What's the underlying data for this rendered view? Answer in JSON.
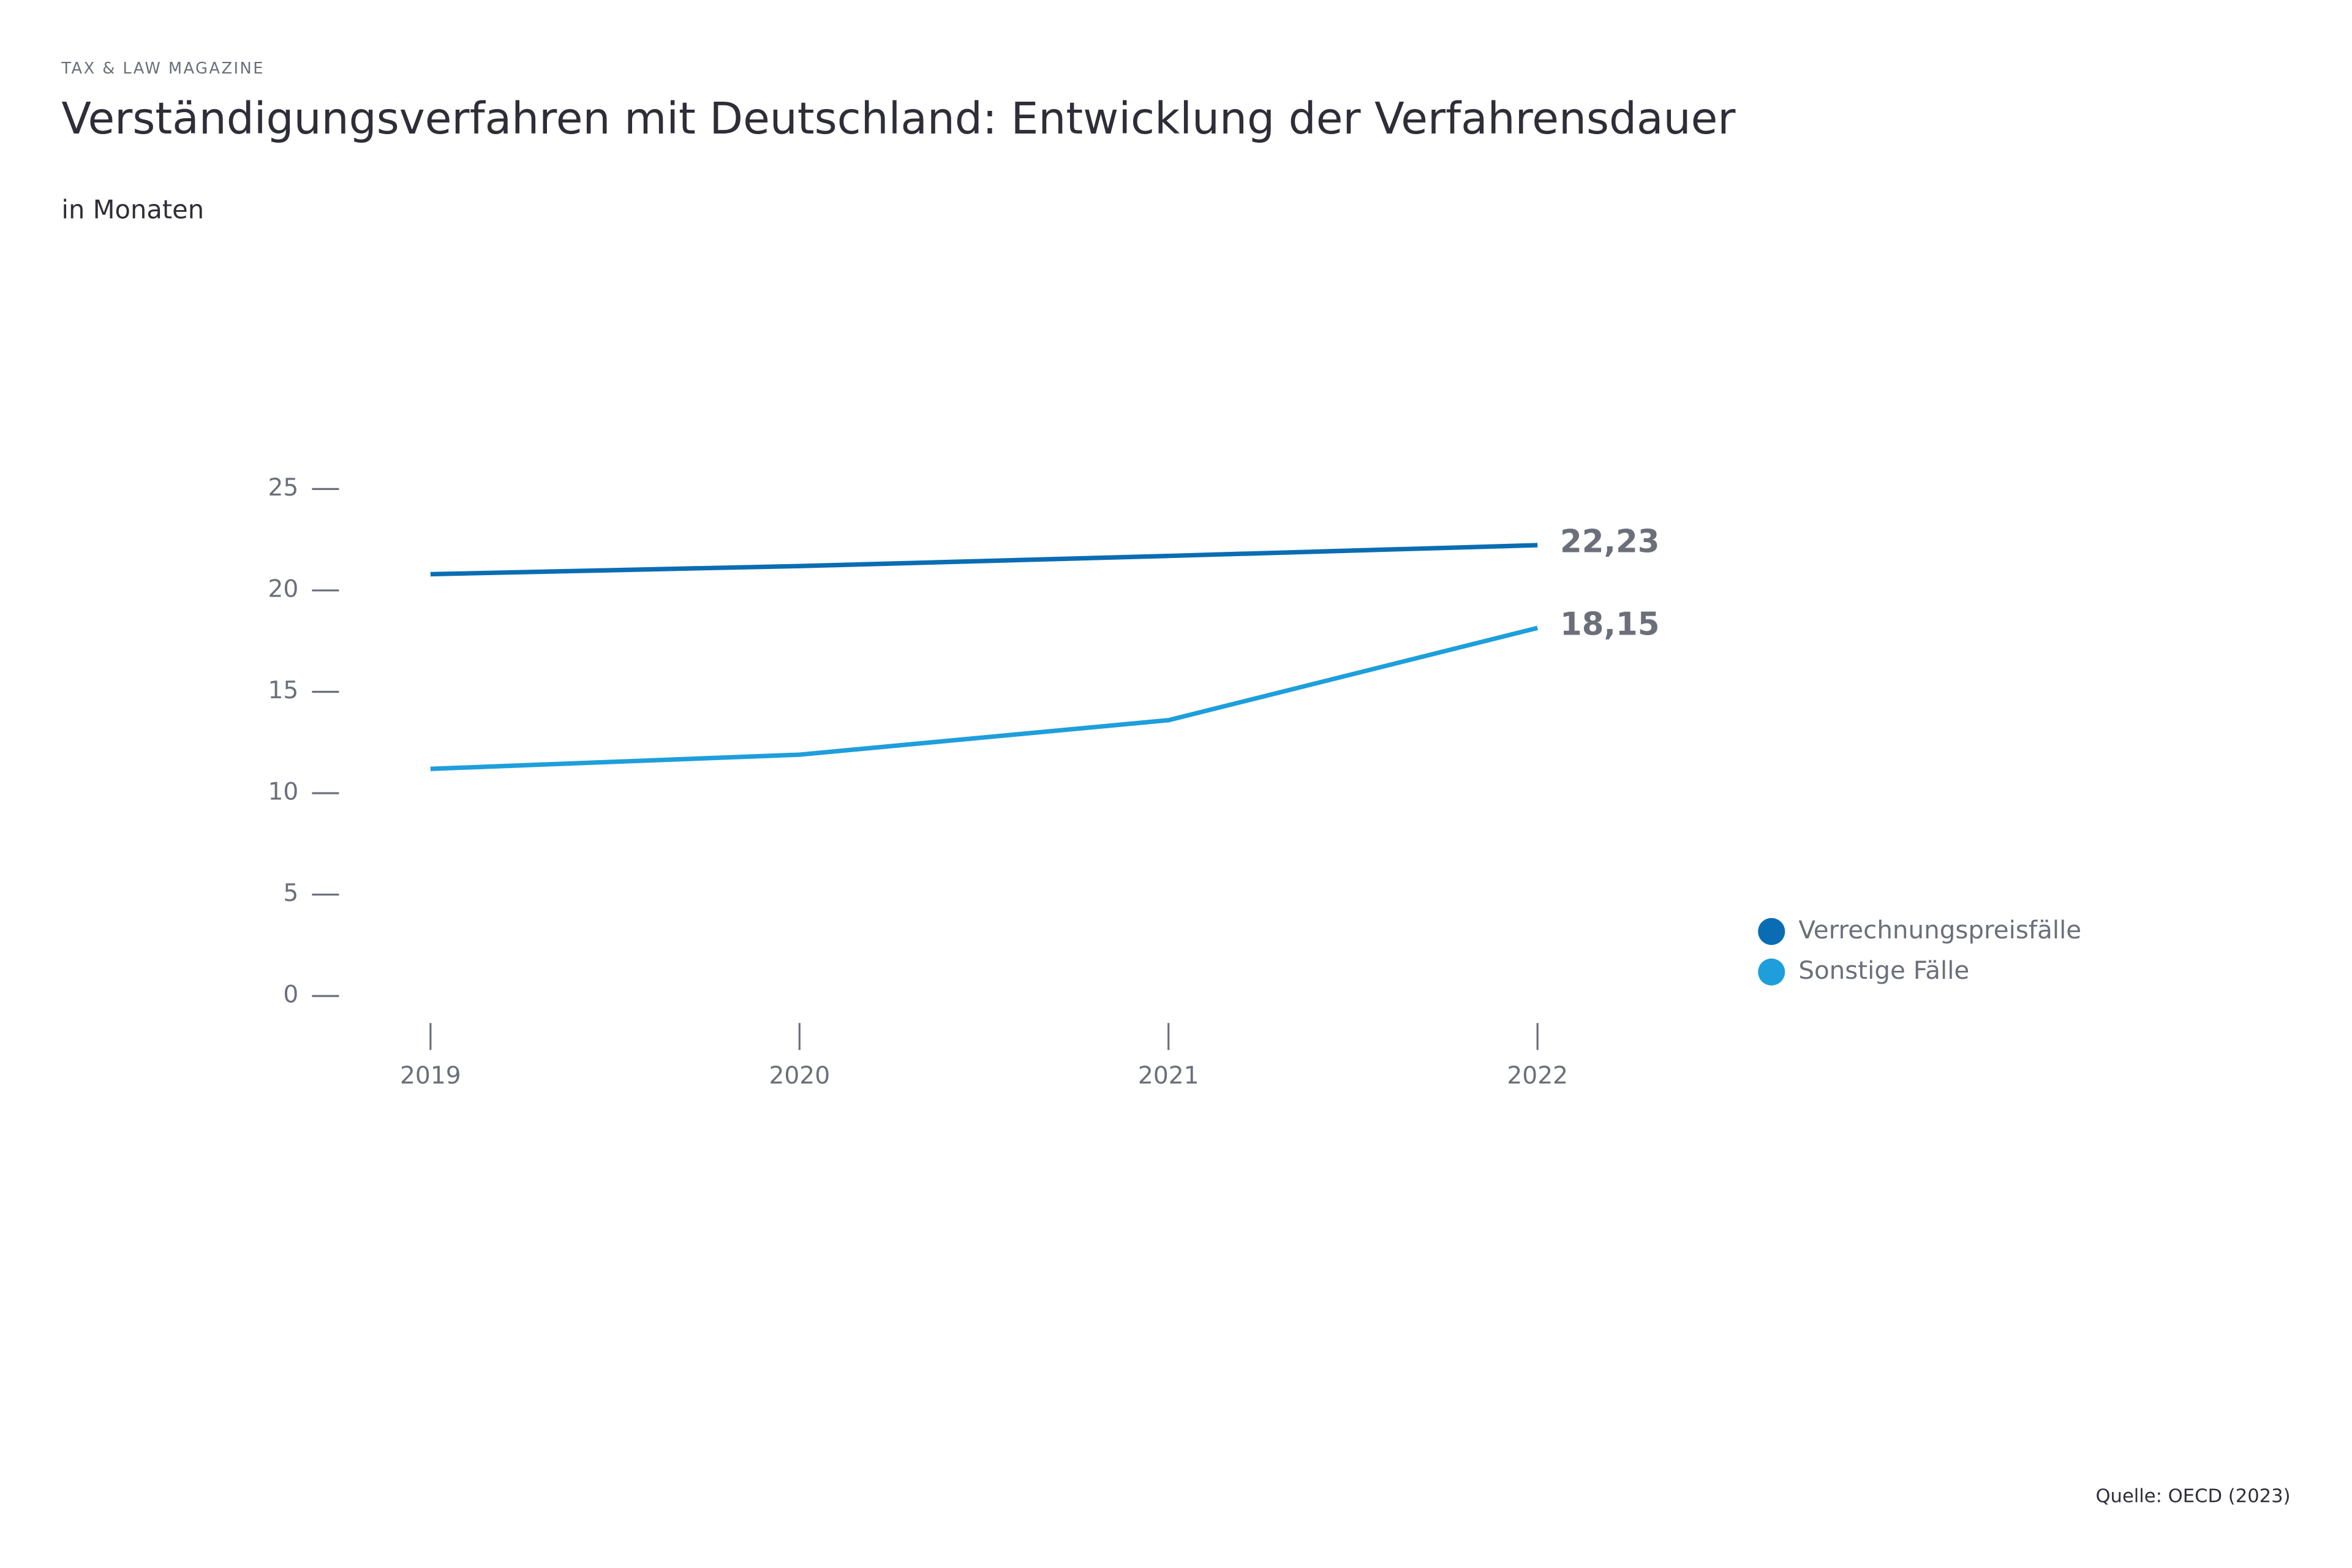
{
  "chart_data": {
    "type": "line",
    "header": "TAX & LAW MAGAZINE",
    "title": "Verständigungsverfahren mit Deutschland: Entwicklung der Verfahrensdauer",
    "subtitle": "in Monaten",
    "source": "Quelle: OECD (2023)",
    "categories": [
      "2019",
      "2020",
      "2021",
      "2022"
    ],
    "series": [
      {
        "name": "Verrechnungspreisfälle",
        "color": "#0a6db3",
        "values": [
          20.8,
          21.2,
          21.7,
          22.23
        ],
        "value_labels": [
          null,
          null,
          null,
          "22,23"
        ]
      },
      {
        "name": "Sonstige Fälle",
        "color": "#1e9fdb",
        "values": [
          11.2,
          11.9,
          13.6,
          18.15
        ],
        "value_labels": [
          null,
          null,
          null,
          "18,15"
        ]
      }
    ],
    "ylim": [
      0,
      25
    ],
    "yticks": [
      0,
      5,
      10,
      15,
      20,
      25
    ],
    "grid": false,
    "legend": "right"
  }
}
